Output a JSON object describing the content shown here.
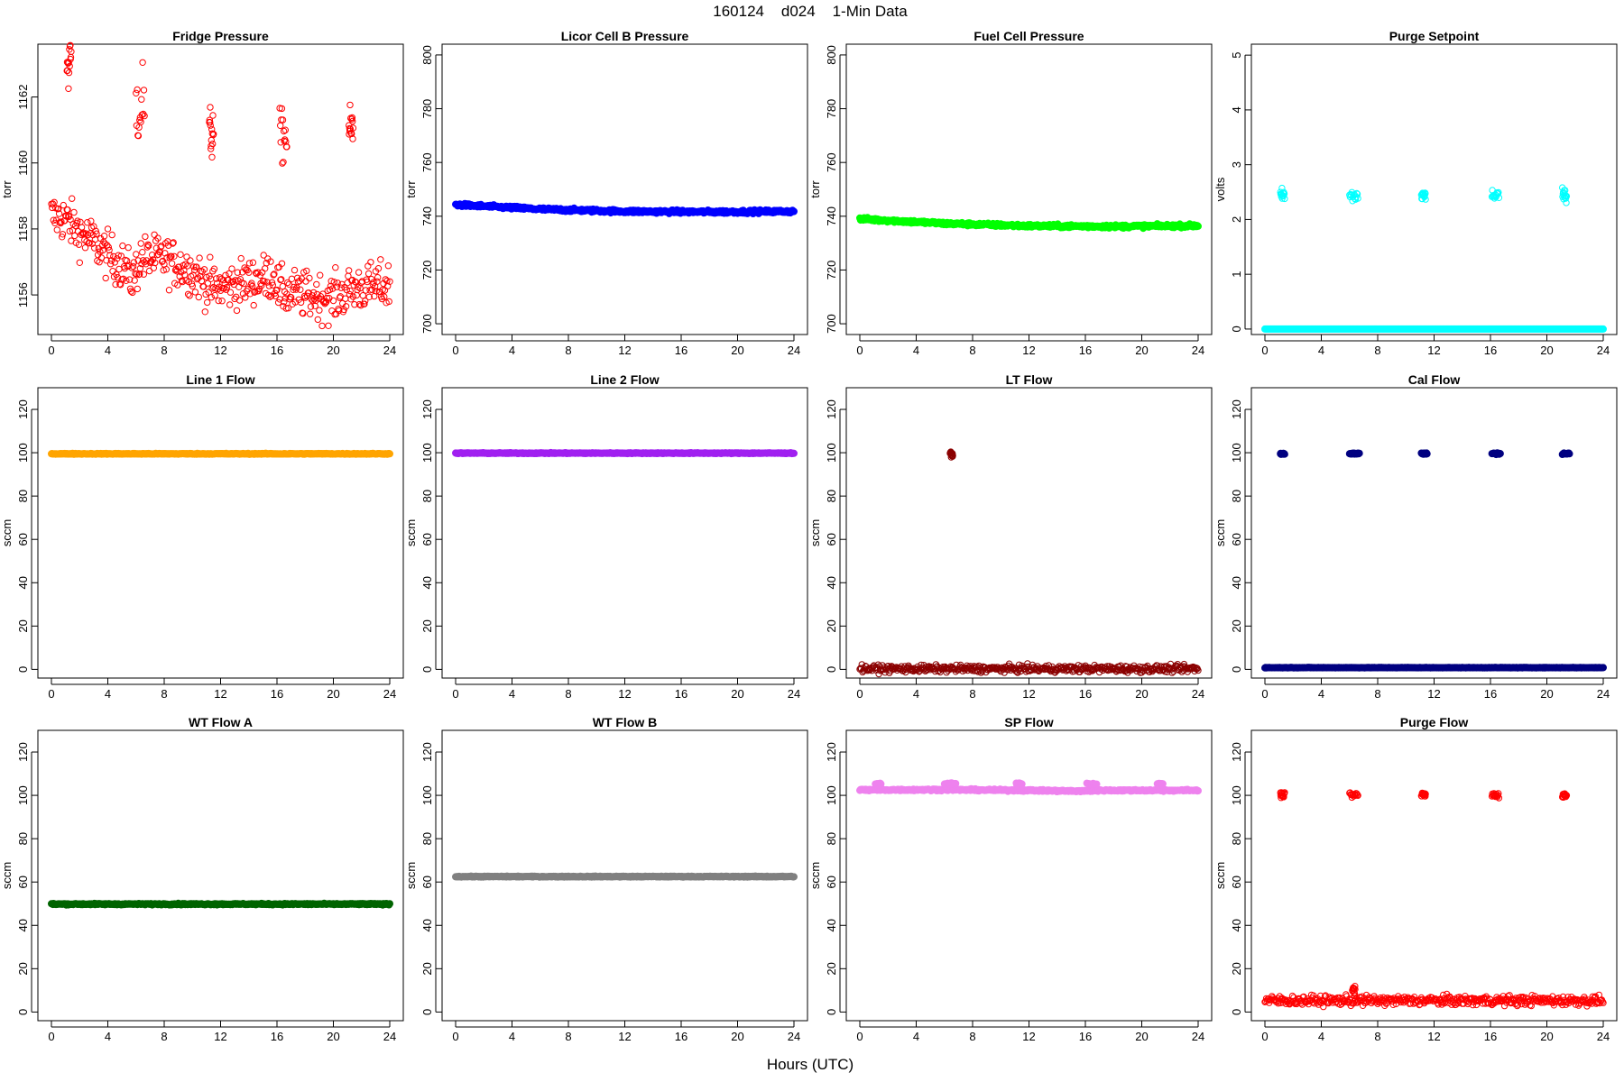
{
  "figure": {
    "title": "160124    d024    1-Min Data",
    "xlabel": "Hours (UTC)"
  },
  "chart_data": [
    {
      "type": "scatter",
      "title": "Fridge Pressure",
      "ylabel": "torr",
      "color": "#ff0000",
      "marker": "open",
      "xlim": [
        0,
        24
      ],
      "xticks": [
        0,
        4,
        8,
        12,
        16,
        20,
        24
      ],
      "ylim": [
        1154.8,
        1163.6
      ],
      "yticks": [
        1156,
        1158,
        1160,
        1162
      ],
      "base": [
        [
          0,
          1158.4
        ],
        [
          1,
          1158.3
        ],
        [
          2,
          1157.9
        ],
        [
          3,
          1157.6
        ],
        [
          4,
          1157.2
        ],
        [
          5,
          1156.9
        ],
        [
          5.8,
          1156.5
        ],
        [
          6.3,
          1157.1
        ],
        [
          8,
          1157.1
        ],
        [
          10,
          1156.7
        ],
        [
          11.5,
          1156.2
        ],
        [
          14,
          1156.4
        ],
        [
          15.8,
          1156.6
        ],
        [
          16.2,
          1156.1
        ],
        [
          18,
          1156.0
        ],
        [
          20,
          1155.9
        ],
        [
          21.5,
          1156.2
        ],
        [
          24,
          1156.3
        ]
      ],
      "noise": 0.35,
      "spikes": [
        {
          "x0": 1.1,
          "x1": 1.4,
          "y": 1163.0,
          "spread": 0.5
        },
        {
          "x0": 6.0,
          "x1": 6.6,
          "y": 1161.9,
          "spread": 0.7
        },
        {
          "x0": 11.2,
          "x1": 11.5,
          "y": 1160.9,
          "spread": 0.4
        },
        {
          "x0": 16.2,
          "x1": 16.7,
          "y": 1160.8,
          "spread": 0.4
        },
        {
          "x0": 21.1,
          "x1": 21.4,
          "y": 1161.0,
          "spread": 0.35
        }
      ]
    },
    {
      "type": "scatter",
      "title": "Licor Cell B Pressure",
      "ylabel": "torr",
      "color": "#0000ff",
      "marker": "filled",
      "xlim": [
        0,
        24
      ],
      "xticks": [
        0,
        4,
        8,
        12,
        16,
        20,
        24
      ],
      "ylim": [
        696,
        804
      ],
      "yticks": [
        700,
        720,
        740,
        760,
        780,
        800
      ],
      "base": [
        [
          0,
          744.3
        ],
        [
          6,
          742.6
        ],
        [
          12,
          741.8
        ],
        [
          18,
          741.6
        ],
        [
          24,
          741.8
        ]
      ],
      "noise": 0.3,
      "spikes": []
    },
    {
      "type": "scatter",
      "title": "Fuel Cell Pressure",
      "ylabel": "torr",
      "color": "#00ff00",
      "marker": "filled",
      "xlim": [
        0,
        24
      ],
      "xticks": [
        0,
        4,
        8,
        12,
        16,
        20,
        24
      ],
      "ylim": [
        696,
        804
      ],
      "yticks": [
        700,
        720,
        740,
        760,
        780,
        800
      ],
      "base": [
        [
          0,
          739.0
        ],
        [
          6,
          737.3
        ],
        [
          12,
          736.4
        ],
        [
          18,
          736.2
        ],
        [
          24,
          736.5
        ]
      ],
      "noise": 0.3,
      "spikes": []
    },
    {
      "type": "scatter",
      "title": "Purge Setpoint",
      "ylabel": "volts",
      "color": "#00ffff",
      "marker": "filled",
      "xlim": [
        0,
        24
      ],
      "xticks": [
        0,
        4,
        8,
        12,
        16,
        20,
        24
      ],
      "ylim": [
        -0.1,
        5.2
      ],
      "yticks": [
        0,
        1,
        2,
        3,
        4,
        5
      ],
      "base": [
        [
          0,
          0
        ],
        [
          24,
          0
        ]
      ],
      "noise": 0.0,
      "spikes": [
        {
          "x0": 1.1,
          "x1": 1.4,
          "y": 2.44,
          "spread": 0.06,
          "open": true
        },
        {
          "x0": 6.0,
          "x1": 6.6,
          "y": 2.42,
          "spread": 0.06,
          "open": true
        },
        {
          "x0": 11.1,
          "x1": 11.4,
          "y": 2.44,
          "spread": 0.05,
          "open": true
        },
        {
          "x0": 16.1,
          "x1": 16.6,
          "y": 2.44,
          "spread": 0.06,
          "open": true
        },
        {
          "x0": 21.1,
          "x1": 21.4,
          "y": 2.44,
          "spread": 0.05,
          "open": true
        }
      ]
    },
    {
      "type": "scatter",
      "title": "Line 1 Flow",
      "ylabel": "sccm",
      "color": "#ffa500",
      "marker": "filled",
      "xlim": [
        0,
        24
      ],
      "xticks": [
        0,
        4,
        8,
        12,
        16,
        20,
        24
      ],
      "ylim": [
        -4,
        130
      ],
      "yticks": [
        0,
        20,
        40,
        60,
        80,
        100,
        120
      ],
      "base": [
        [
          0,
          99.5
        ],
        [
          24,
          99.5
        ]
      ],
      "noise": 0.1,
      "spikes": []
    },
    {
      "type": "scatter",
      "title": "Line 2 Flow",
      "ylabel": "sccm",
      "color": "#a020f0",
      "marker": "filled",
      "xlim": [
        0,
        24
      ],
      "xticks": [
        0,
        4,
        8,
        12,
        16,
        20,
        24
      ],
      "ylim": [
        -4,
        130
      ],
      "yticks": [
        0,
        20,
        40,
        60,
        80,
        100,
        120
      ],
      "base": [
        [
          0,
          99.8
        ],
        [
          24,
          99.8
        ]
      ],
      "noise": 0.1,
      "spikes": []
    },
    {
      "type": "scatter",
      "title": "LT Flow",
      "ylabel": "sccm",
      "color": "#8b0000",
      "marker": "open",
      "xlim": [
        0,
        24
      ],
      "xticks": [
        0,
        4,
        8,
        12,
        16,
        20,
        24
      ],
      "ylim": [
        -4,
        130
      ],
      "yticks": [
        0,
        20,
        40,
        60,
        80,
        100,
        120
      ],
      "base": [
        [
          0,
          0.3
        ],
        [
          24,
          0.3
        ]
      ],
      "noise": 0.8,
      "spikes": [
        {
          "x0": 6.4,
          "x1": 6.6,
          "y": 99.5,
          "spread": 1.2
        }
      ]
    },
    {
      "type": "scatter",
      "title": "Cal Flow",
      "ylabel": "sccm",
      "color": "#000080",
      "marker": "filled",
      "xlim": [
        0,
        24
      ],
      "xticks": [
        0,
        4,
        8,
        12,
        16,
        20,
        24
      ],
      "ylim": [
        -4,
        130
      ],
      "yticks": [
        0,
        20,
        40,
        60,
        80,
        100,
        120
      ],
      "base": [
        [
          0,
          0.8
        ],
        [
          24,
          0.8
        ]
      ],
      "noise": 0.05,
      "spikes": [
        {
          "x0": 1.1,
          "x1": 1.4,
          "y": 99.6,
          "spread": 0.2
        },
        {
          "x0": 6.0,
          "x1": 6.7,
          "y": 99.6,
          "spread": 0.2
        },
        {
          "x0": 11.1,
          "x1": 11.5,
          "y": 99.6,
          "spread": 0.2
        },
        {
          "x0": 16.1,
          "x1": 16.7,
          "y": 99.6,
          "spread": 0.2
        },
        {
          "x0": 21.1,
          "x1": 21.6,
          "y": 99.6,
          "spread": 0.2
        }
      ]
    },
    {
      "type": "scatter",
      "title": "WT Flow A",
      "ylabel": "sccm",
      "color": "#006400",
      "marker": "filled",
      "xlim": [
        0,
        24
      ],
      "xticks": [
        0,
        4,
        8,
        12,
        16,
        20,
        24
      ],
      "ylim": [
        -4,
        130
      ],
      "yticks": [
        0,
        20,
        40,
        60,
        80,
        100,
        120
      ],
      "base": [
        [
          0,
          49.8
        ],
        [
          24,
          49.8
        ]
      ],
      "noise": 0.15,
      "spikes": []
    },
    {
      "type": "scatter",
      "title": "WT Flow B",
      "ylabel": "sccm",
      "color": "#808080",
      "marker": "filled",
      "xlim": [
        0,
        24
      ],
      "xticks": [
        0,
        4,
        8,
        12,
        16,
        20,
        24
      ],
      "ylim": [
        -4,
        130
      ],
      "yticks": [
        0,
        20,
        40,
        60,
        80,
        100,
        120
      ],
      "base": [
        [
          0,
          62.5
        ],
        [
          24,
          62.5
        ]
      ],
      "noise": 0.1,
      "spikes": []
    },
    {
      "type": "scatter",
      "title": "SP Flow",
      "ylabel": "sccm",
      "color": "#ee82ee",
      "marker": "filled",
      "xlim": [
        0,
        24
      ],
      "xticks": [
        0,
        4,
        8,
        12,
        16,
        20,
        24
      ],
      "ylim": [
        -4,
        130
      ],
      "yticks": [
        0,
        20,
        40,
        60,
        80,
        100,
        120
      ],
      "base": [
        [
          0,
          102.5
        ],
        [
          6,
          102.6
        ],
        [
          12,
          102.3
        ],
        [
          15,
          102.0
        ],
        [
          16,
          102.0
        ],
        [
          17,
          102.3
        ],
        [
          24,
          102.3
        ]
      ],
      "noise": 0.2,
      "spikes": [
        {
          "x0": 1.1,
          "x1": 1.5,
          "y": 105.3,
          "spread": 0.2
        },
        {
          "x0": 6.0,
          "x1": 6.8,
          "y": 105.3,
          "spread": 0.2
        },
        {
          "x0": 11.1,
          "x1": 11.5,
          "y": 105.3,
          "spread": 0.2
        },
        {
          "x0": 16.1,
          "x1": 16.8,
          "y": 105.3,
          "spread": 0.2
        },
        {
          "x0": 21.1,
          "x1": 21.5,
          "y": 105.3,
          "spread": 0.2
        }
      ]
    },
    {
      "type": "scatter",
      "title": "Purge Flow",
      "ylabel": "sccm",
      "color": "#ff0000",
      "marker": "open",
      "xlim": [
        0,
        24
      ],
      "xticks": [
        0,
        4,
        8,
        12,
        16,
        20,
        24
      ],
      "ylim": [
        -4,
        130
      ],
      "yticks": [
        0,
        20,
        40,
        60,
        80,
        100,
        120
      ],
      "base": [
        [
          0,
          5.3
        ],
        [
          24,
          5.3
        ]
      ],
      "noise": 1.1,
      "spikes": [
        {
          "x0": 1.1,
          "x1": 1.4,
          "y": 100.2,
          "spread": 0.6
        },
        {
          "x0": 6.0,
          "x1": 6.6,
          "y": 100.0,
          "spread": 0.6
        },
        {
          "x0": 11.1,
          "x1": 11.4,
          "y": 100.3,
          "spread": 0.6
        },
        {
          "x0": 16.1,
          "x1": 16.6,
          "y": 100.1,
          "spread": 0.6
        },
        {
          "x0": 21.1,
          "x1": 21.4,
          "y": 100.0,
          "spread": 0.6
        },
        {
          "x0": 6.2,
          "x1": 6.4,
          "y": 10.5,
          "spread": 1.2
        }
      ]
    }
  ]
}
